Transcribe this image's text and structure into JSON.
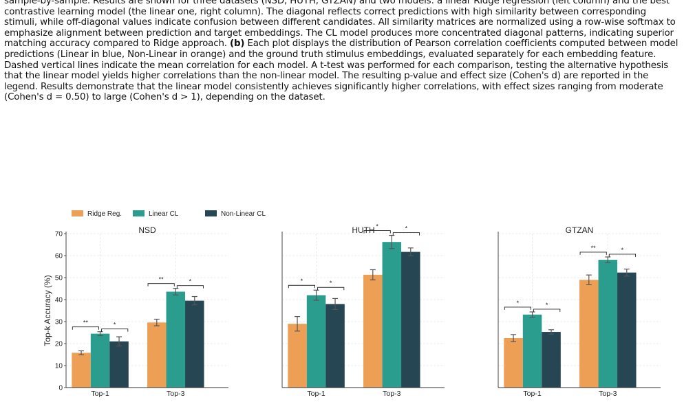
{
  "caption": {
    "text_1": "sample-by-sample. Results are shown for three datasets (NSD, HUTH, GTZAN) and two models: a linear Ridge regression (left column) and the best contrastive learning model (the linear one, right column). The diagonal reflects correct predictions with high similarity between corresponding stimuli, while off-diagonal values indicate confusion between different candidates. All similarity matrices are normalized using a row-wise softmax to emphasize alignment between prediction and target embeddings. The CL model produces more concentrated diagonal patterns, indicating superior matching accuracy compared to Ridge approach.",
    "bold_b": "(b)",
    "text_2": "Each plot displays the distribution of Pearson correlation coefficients computed between model predictions (Linear in blue, Non-Linear in orange) and the ground truth stimulus embeddings, evaluated separately for each embedding feature. Dashed vertical lines indicate the mean correlation for each model. A t-test was performed for each comparison, testing the alternative hypothesis that the linear model yields higher correlations than the non-linear model. The resulting p-value and effect size (Cohen's d) are reported in the legend. Results demonstrate that the linear model consistently achieves significantly higher correlations, with effect sizes ranging from moderate (Cohen's d = 0.50) to large (Cohen's d > 1), depending on the dataset."
  },
  "colors": {
    "ridge": "#EE9F56",
    "linear": "#2A9D8F",
    "nonlinear": "#264653"
  },
  "chart_data": [
    {
      "type": "bar",
      "title": "NSD",
      "ylabel": "Top-k Accuracy (%)",
      "ylim": [
        0,
        70
      ],
      "yticks": [
        0,
        10,
        20,
        30,
        40,
        50,
        60,
        70
      ],
      "categories": [
        "Top-1",
        "Top-3"
      ],
      "series": [
        {
          "name": "Ridge Reg.",
          "values": [
            15.8,
            29.6
          ],
          "errors": [
            0.9,
            1.5
          ]
        },
        {
          "name": "Linear CL",
          "values": [
            24.5,
            43.6
          ],
          "errors": [
            0.9,
            1.5
          ]
        },
        {
          "name": "Non-Linear CL",
          "values": [
            21.0,
            39.5
          ],
          "errors": [
            2.1,
            1.9
          ]
        }
      ],
      "significance": [
        [
          "**",
          "*"
        ],
        [
          "**",
          "*"
        ]
      ],
      "legend": "top"
    },
    {
      "type": "bar",
      "title": "HUTH",
      "ylim": [
        0,
        70
      ],
      "categories": [
        "Top-1",
        "Top-3"
      ],
      "series": [
        {
          "name": "Ridge Reg.",
          "values": [
            29.0,
            51.3
          ],
          "errors": [
            3.3,
            2.3
          ]
        },
        {
          "name": "Linear CL",
          "values": [
            42.0,
            66.2
          ],
          "errors": [
            2.3,
            3.0
          ]
        },
        {
          "name": "Non-Linear CL",
          "values": [
            38.0,
            61.7
          ],
          "errors": [
            2.5,
            1.8
          ]
        }
      ],
      "significance": [
        [
          "*",
          "*"
        ],
        [
          "*",
          "*"
        ]
      ]
    },
    {
      "type": "bar",
      "title": "GTZAN",
      "ylim": [
        0,
        70
      ],
      "categories": [
        "Top-1",
        "Top-3"
      ],
      "series": [
        {
          "name": "Ridge Reg.",
          "values": [
            22.5,
            49.0
          ],
          "errors": [
            1.6,
            2.2
          ]
        },
        {
          "name": "Linear CL",
          "values": [
            33.2,
            58.1
          ],
          "errors": [
            1.2,
            1.3
          ]
        },
        {
          "name": "Non-Linear CL",
          "values": [
            25.3,
            52.3
          ],
          "errors": [
            1.0,
            1.6
          ]
        }
      ],
      "significance": [
        [
          "*",
          "*"
        ],
        [
          "**",
          "*"
        ]
      ]
    }
  ]
}
